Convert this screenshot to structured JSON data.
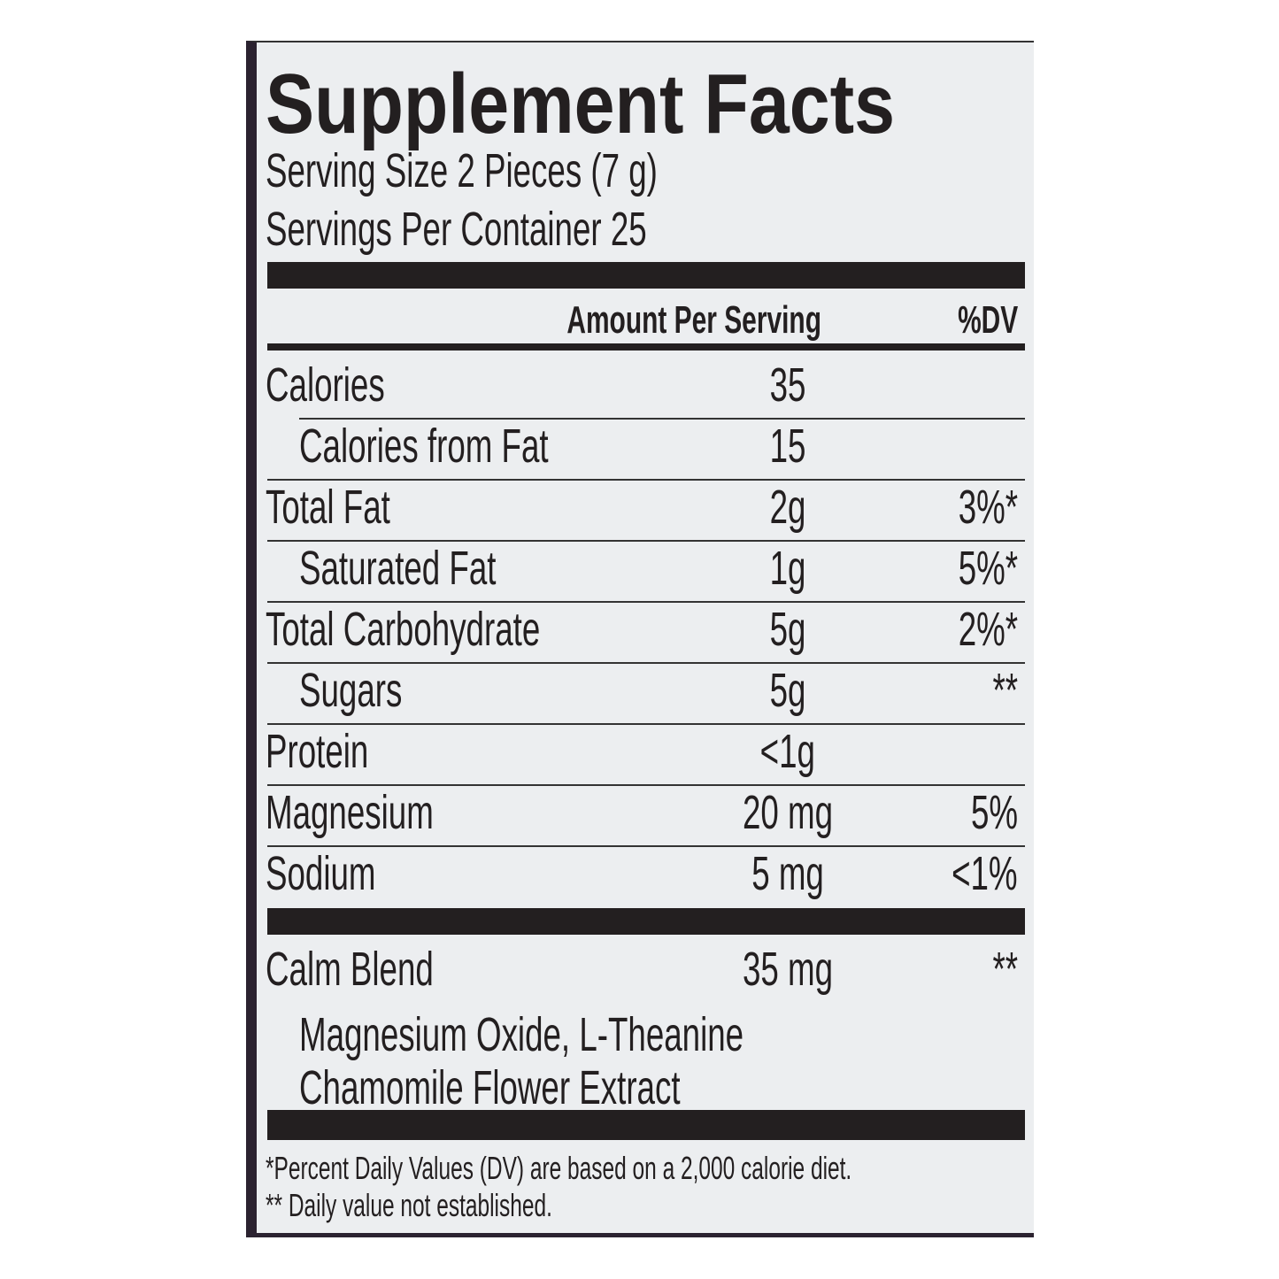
{
  "title": "Supplement Facts",
  "serving_size": "Serving Size 2 Pieces (7 g)",
  "servings_per_container": "Servings Per Container 25",
  "header": {
    "amount": "Amount Per Serving",
    "dv": "%DV"
  },
  "rows": [
    {
      "name": "Calories",
      "amount": "35",
      "dv": "",
      "indent": false
    },
    {
      "name": "Calories from Fat",
      "amount": "15",
      "dv": "",
      "indent": true
    },
    {
      "name": "Total Fat",
      "amount": "2g",
      "dv": "3%*",
      "indent": false
    },
    {
      "name": "Saturated Fat",
      "amount": "1g",
      "dv": "5%*",
      "indent": true
    },
    {
      "name": "Total Carbohydrate",
      "amount": "5g",
      "dv": "2%*",
      "indent": false
    },
    {
      "name": "Sugars",
      "amount": "5g",
      "dv": "**",
      "indent": true
    },
    {
      "name": "Protein",
      "amount": "<1g",
      "dv": "",
      "indent": false
    },
    {
      "name": "Magnesium",
      "amount": "20 mg",
      "dv": "5%",
      "indent": false
    },
    {
      "name": "Sodium",
      "amount": "5 mg",
      "dv": "<1%",
      "indent": false
    }
  ],
  "blend": {
    "name": "Calm Blend",
    "amount": "35 mg",
    "dv": "**",
    "ingredients_line1": "Magnesium Oxide, L-Theanine",
    "ingredients_line2": "Chamomile Flower Extract"
  },
  "footnotes": [
    "*Percent Daily Values (DV) are based on a 2,000 calorie diet.",
    "** Daily value not established."
  ]
}
